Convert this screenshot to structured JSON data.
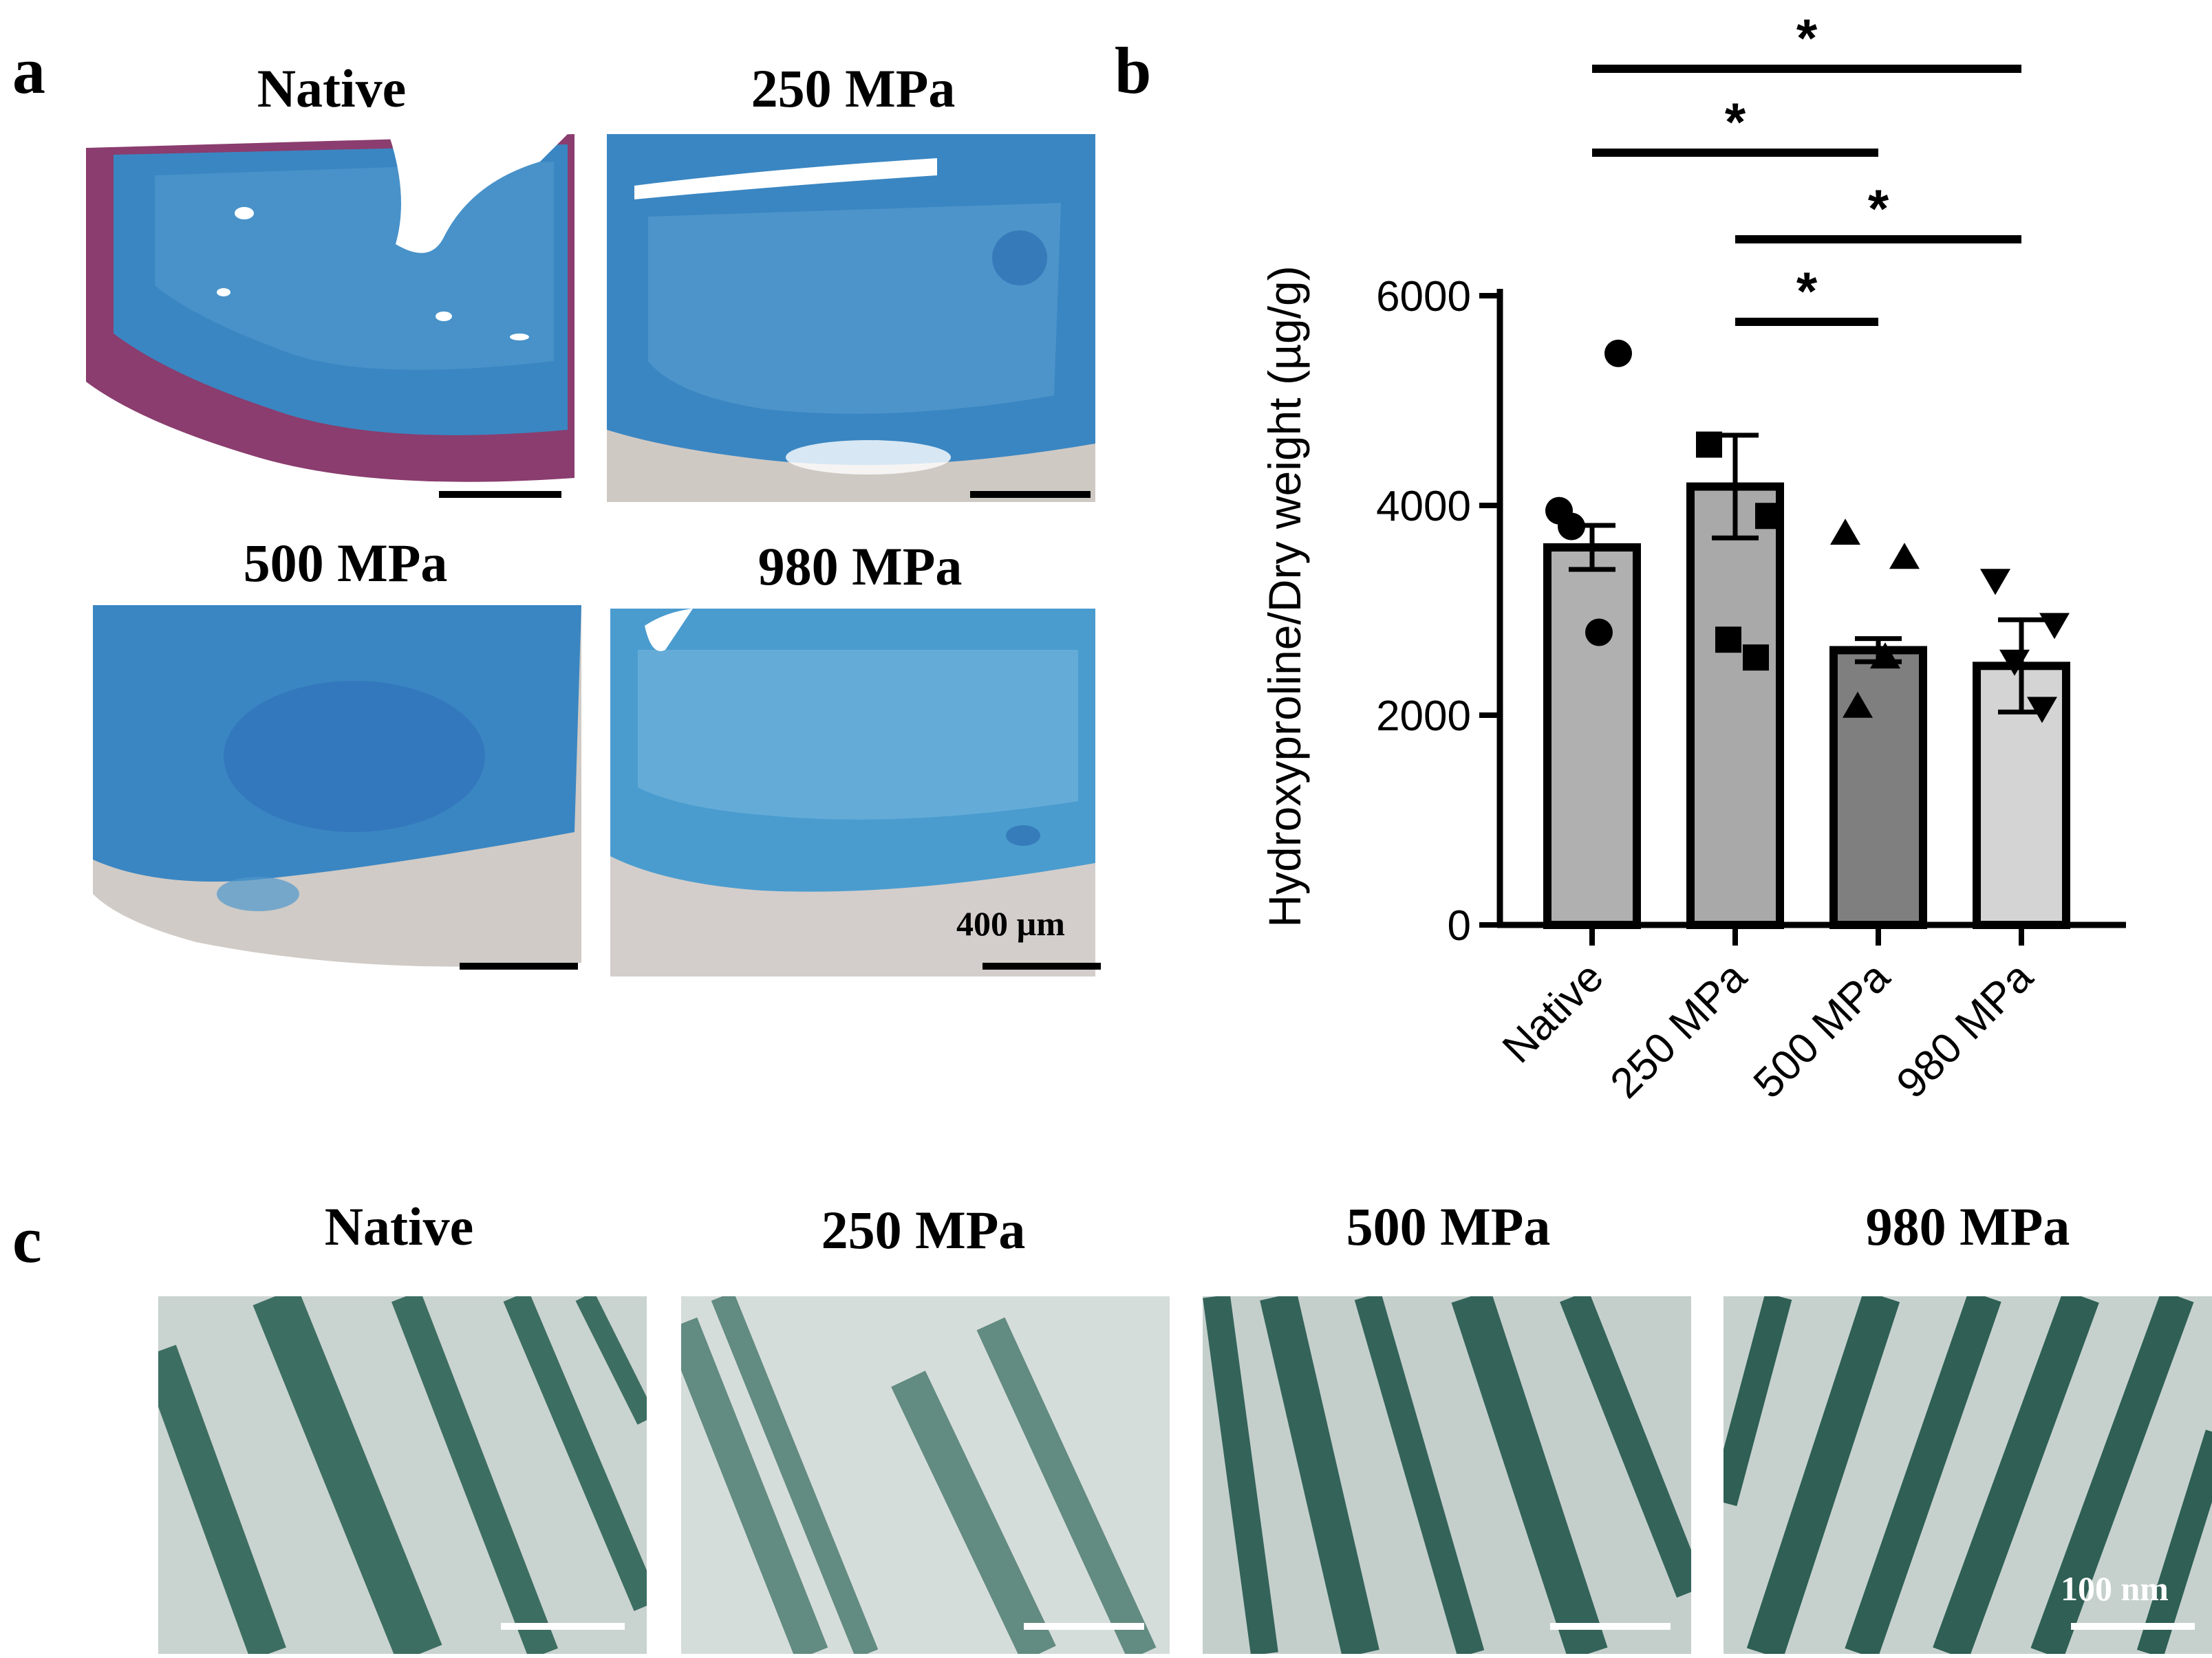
{
  "panel_a": {
    "letter": "a",
    "titles": [
      "Native",
      "250 MPa",
      "500 MPa",
      "980 MPa"
    ],
    "scale_label": "400 µm",
    "colors": {
      "stain_blue": "#3a86c2",
      "stain_purple": "#8a3d6e",
      "tissue_grey": "#cfc9c4"
    }
  },
  "panel_b": {
    "letter": "b",
    "significance_label": "*"
  },
  "panel_c": {
    "letter": "c",
    "titles": [
      "Native",
      "250 MPa",
      "500 MPa",
      "980 MPa"
    ],
    "scale_label": "100 nm",
    "colors": {
      "fibril_green": "#3d6e62",
      "background": "#c9d3cf"
    }
  },
  "chart_data": {
    "type": "bar",
    "categories": [
      "Native",
      "250 MPa",
      "500 MPa",
      "980 MPa"
    ],
    "values": [
      3600,
      4180,
      2620,
      2470
    ],
    "sem": [
      210,
      490,
      110,
      440
    ],
    "fills": [
      "#b0b0b0",
      "#a9a9a9",
      "#7f7f7f",
      "#d4d4d4"
    ],
    "points": [
      {
        "marker": "circle",
        "values": [
          3950,
          3900,
          3730,
          2870
        ]
      },
      {
        "marker": "square",
        "values": [
          5450,
          4580,
          3500,
          3290
        ]
      },
      {
        "marker": "triangle-up",
        "values": [
          2790,
          2720,
          2550,
          2520
        ]
      },
      {
        "marker": "triangle-down",
        "values": [
          3800,
          2550,
          2080,
          2070
        ]
      }
    ],
    "ylabel": "Hydroxyproline/Dry weight (µg/g)",
    "xlabel": "",
    "yticks": [
      0,
      2000,
      4000,
      6000
    ],
    "ylim": [
      0,
      6000
    ],
    "significance": [
      {
        "from": 0,
        "to": 3,
        "label": "*"
      },
      {
        "from": 0,
        "to": 2,
        "label": "*"
      },
      {
        "from": 1,
        "to": 3,
        "label": "*"
      },
      {
        "from": 1,
        "to": 2,
        "label": "*"
      }
    ]
  }
}
